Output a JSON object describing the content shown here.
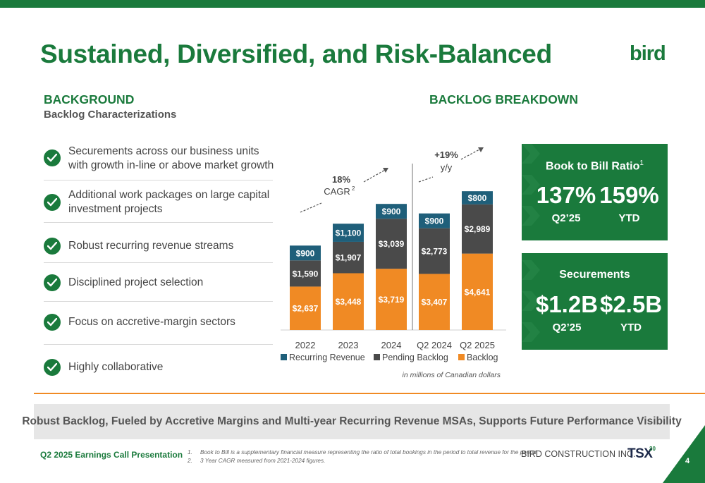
{
  "title": "Sustained, Diversified, and Risk-Balanced",
  "logo_text": "bird",
  "left": {
    "heading": "BACKGROUND",
    "subheading": "Backlog Characterizations",
    "items": [
      {
        "text": "Securements across our business units with growth in-line or above market growth"
      },
      {
        "text": "Additional work packages on large capital investment projects"
      },
      {
        "text": "Robust recurring revenue streams"
      },
      {
        "text": "Disciplined project selection"
      },
      {
        "text": "Focus on accretive-margin sectors"
      },
      {
        "text": "Highly collaborative"
      }
    ]
  },
  "chart_heading": "BACKLOG BREAKDOWN",
  "chart_data": {
    "type": "bar",
    "stacked": true,
    "categories": [
      "2022",
      "2023",
      "2024",
      "Q2 2024",
      "Q2 2025"
    ],
    "series": [
      {
        "name": "Backlog",
        "color": "#f08a24",
        "values": [
          2637,
          3448,
          3719,
          3407,
          4641
        ],
        "labels": [
          "$2,637",
          "$3,448",
          "$3,719",
          "$3,407",
          "$4,641"
        ]
      },
      {
        "name": "Pending Backlog",
        "color": "#4a4a4a",
        "values": [
          1590,
          1907,
          3039,
          2773,
          2989
        ],
        "labels": [
          "$1,590",
          "$1,907",
          "$3,039",
          "$2,773",
          "$2,989"
        ]
      },
      {
        "name": "Recurring Revenue",
        "color": "#1f5f7a",
        "values": [
          900,
          1100,
          900,
          900,
          800
        ],
        "labels": [
          "$900",
          "$1,100",
          "$900",
          "$900",
          "$800"
        ]
      }
    ],
    "legend_order": [
      "Recurring Revenue",
      "Pending Backlog",
      "Backlog"
    ],
    "legend_position": "bottom",
    "annotations": [
      {
        "text_main": "18%",
        "text_sub": "CAGR",
        "superscript": "2"
      },
      {
        "text_main": "+19%",
        "text_sub": "y/y",
        "superscript": ""
      }
    ],
    "unit_note": "in millions of Canadian dollars"
  },
  "kpis": {
    "book_to_bill": {
      "title": "Book to Bill Ratio",
      "title_sup": "1",
      "values": [
        {
          "big": "137%",
          "sub": "Q2’25"
        },
        {
          "big": "159%",
          "sub": "YTD"
        }
      ]
    },
    "securements": {
      "title": "Securements",
      "values": [
        {
          "big": "$1.2B",
          "sub": "Q2’25"
        },
        {
          "big": "$2.5B",
          "sub": "YTD"
        }
      ]
    }
  },
  "banner": "Robust Backlog, Fueled by Accretive Margins and Multi-year Recurring Revenue MSAs, Supports Future Performance Visibility",
  "footer": {
    "left": "Q2 2025 Earnings Call Presentation",
    "notes": [
      {
        "n": "1.",
        "text": "Book to Bill is a supplementary financial measure representing the ratio of total bookings in the period to total revenue for the period."
      },
      {
        "n": "2.",
        "text": "3 Year CAGR measured from 2021-2024 figures."
      }
    ],
    "company": "BIRD CONSTRUCTION INC.",
    "tsx": "TSX",
    "tsx_badge": "30",
    "page": "4"
  },
  "colors": {
    "brand_green": "#1a7a3c",
    "orange": "#f08a24",
    "teal": "#1f5f7a",
    "dark_gray": "#4a4a4a"
  }
}
